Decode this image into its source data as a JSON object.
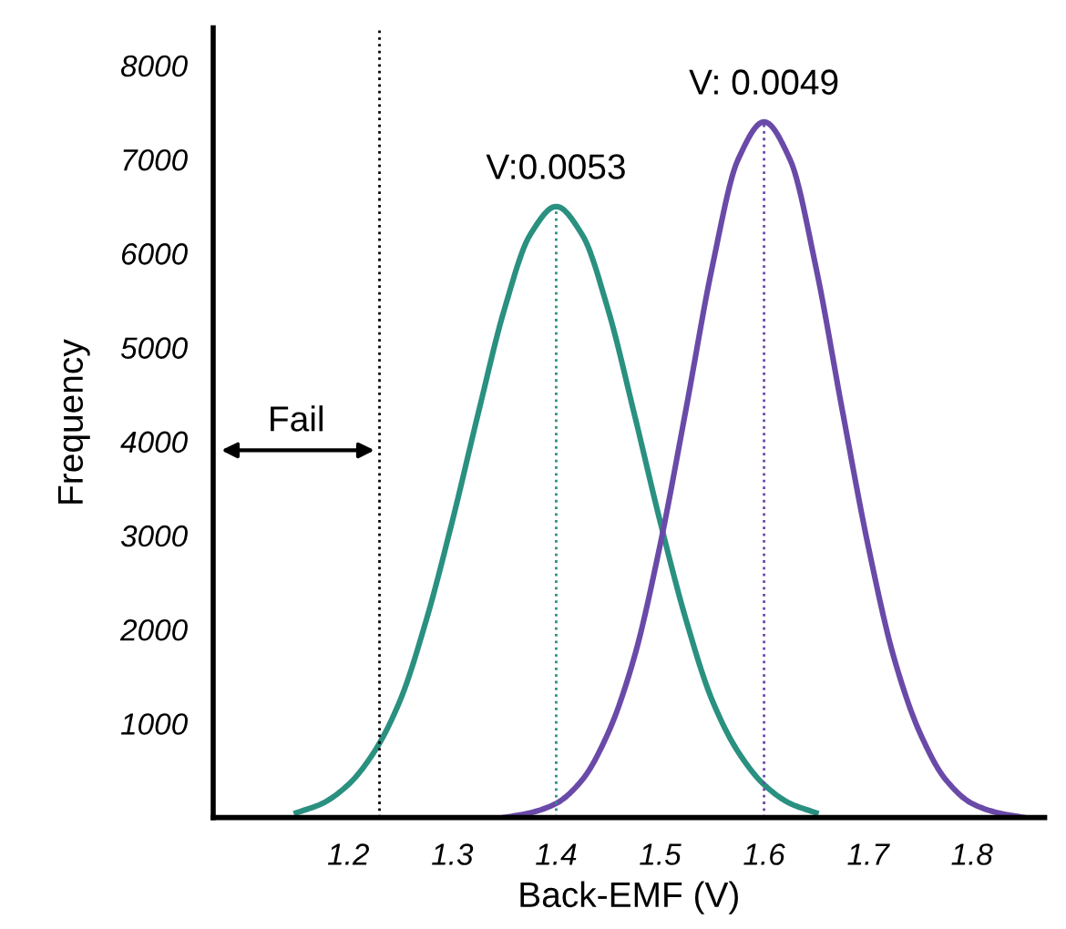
{
  "chart_data": {
    "type": "line",
    "xlabel": "Back-EMF (V)",
    "ylabel": "Frequency",
    "xlim": [
      1.07,
      1.87
    ],
    "xticks": [
      1.2,
      1.3,
      1.4,
      1.5,
      1.6,
      1.7,
      1.8
    ],
    "ylim": [
      0,
      8400
    ],
    "yticks": [
      1000,
      2000,
      3000,
      4000,
      5000,
      6000,
      7000,
      8000
    ],
    "grid": false,
    "marker": "none",
    "line_style": "solid",
    "series": [
      {
        "color": "#2a9080",
        "x": [
          1.15,
          1.175,
          1.2,
          1.225,
          1.25,
          1.275,
          1.3,
          1.325,
          1.35,
          1.375,
          1.4,
          1.425,
          1.45,
          1.475,
          1.5,
          1.525,
          1.55,
          1.575,
          1.6,
          1.625,
          1.65
        ],
        "values": [
          50,
          150,
          350,
          700,
          1250,
          2100,
          3150,
          4300,
          5400,
          6200,
          6500,
          6200,
          5400,
          4300,
          3150,
          2100,
          1250,
          700,
          350,
          150,
          50
        ]
      },
      {
        "color": "#6a4aa8",
        "x": [
          1.35,
          1.375,
          1.4,
          1.425,
          1.45,
          1.475,
          1.5,
          1.525,
          1.55,
          1.575,
          1.6,
          1.625,
          1.65,
          1.675,
          1.7,
          1.725,
          1.75,
          1.775,
          1.8,
          1.825,
          1.85
        ],
        "values": [
          0,
          50,
          150,
          400,
          900,
          1700,
          2900,
          4350,
          5850,
          7000,
          7400,
          7000,
          5850,
          4350,
          2900,
          1700,
          900,
          400,
          150,
          50,
          0
        ]
      }
    ],
    "ref_lines": [
      {
        "axis": "x",
        "value": 1.23,
        "line_style": "dotted",
        "color": "#000000"
      },
      {
        "axis": "x",
        "value": 1.4,
        "line_style": "dotted",
        "color": "#2a9080"
      },
      {
        "axis": "x",
        "value": 1.6,
        "line_style": "dotted",
        "color": "#6a4aa8"
      }
    ],
    "annotations": [
      {
        "text": "V:0.0053",
        "x": 1.4,
        "y": 6500
      },
      {
        "text": "V: 0.0049",
        "x": 1.6,
        "y": 7400
      },
      "Fail"
    ]
  }
}
